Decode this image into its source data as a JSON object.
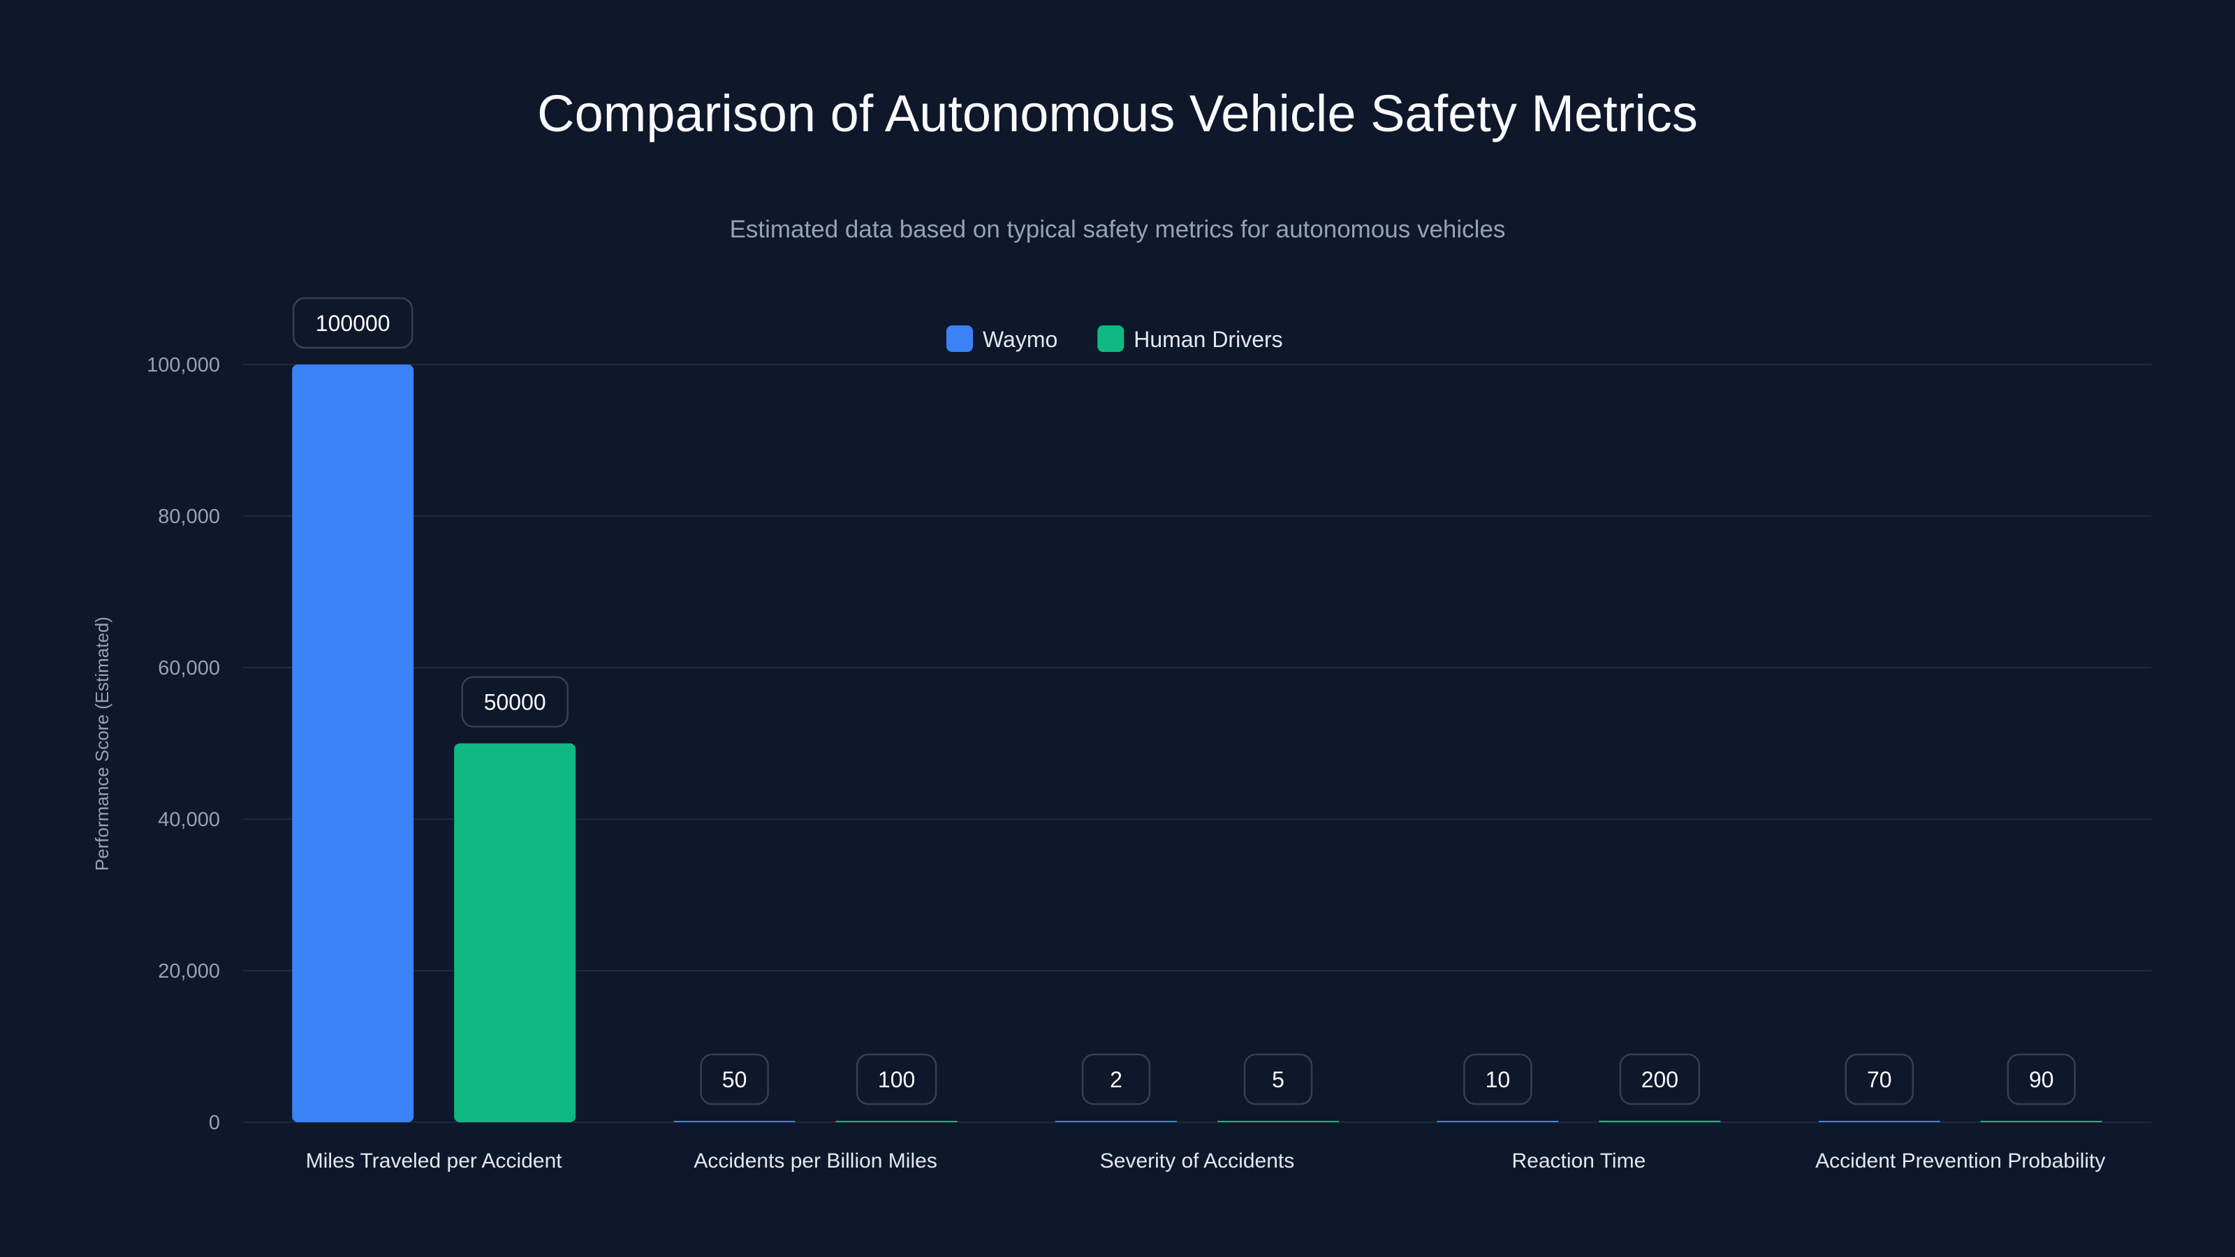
{
  "chart_data": {
    "type": "bar",
    "title": "Comparison of Autonomous Vehicle Safety Metrics",
    "subtitle": "Estimated data based on typical safety metrics for autonomous vehicles",
    "xlabel": "",
    "ylabel": "Performance Score (Estimated)",
    "ylim": [
      0,
      100000
    ],
    "yticks": [
      0,
      20000,
      40000,
      60000,
      80000,
      100000
    ],
    "ytick_labels": [
      "0",
      "20,000",
      "40,000",
      "60,000",
      "80,000",
      "100,000"
    ],
    "grid": true,
    "legend_position": "top-center",
    "categories": [
      "Miles Traveled per Accident",
      "Accidents per Billion Miles",
      "Severity of Accidents",
      "Reaction Time",
      "Accident Prevention Probability"
    ],
    "series": [
      {
        "name": "Waymo",
        "color": "#3b82f6",
        "values": [
          100000,
          50,
          2,
          10,
          70
        ]
      },
      {
        "name": "Human Drivers",
        "color": "#10b981",
        "values": [
          50000,
          100,
          5,
          200,
          90
        ]
      }
    ]
  }
}
